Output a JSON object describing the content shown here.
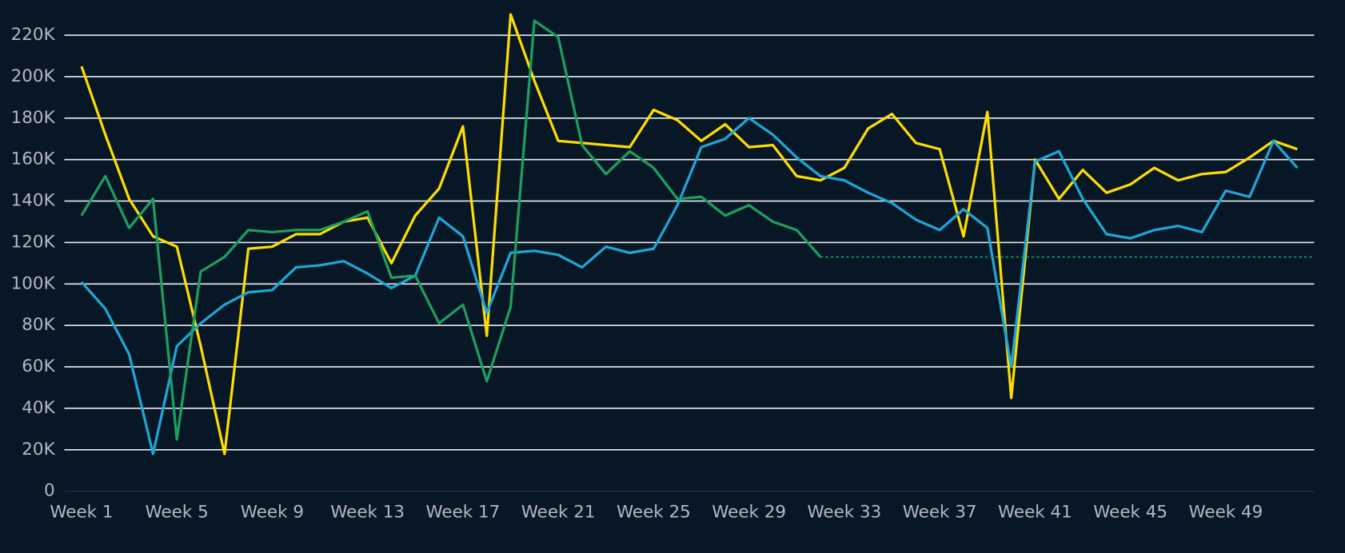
{
  "chart_data": {
    "type": "line",
    "categories": [
      "Week 1",
      null,
      null,
      null,
      "Week 5",
      null,
      null,
      null,
      "Week 9",
      null,
      null,
      null,
      "Week 13",
      null,
      null,
      null,
      "Week 17",
      null,
      null,
      null,
      "Week 21",
      null,
      null,
      null,
      "Week 25",
      null,
      null,
      null,
      "Week 29",
      null,
      null,
      null,
      "Week 33",
      null,
      null,
      null,
      "Week 37",
      null,
      null,
      null,
      "Week 41",
      null,
      null,
      null,
      "Week 45",
      null,
      null,
      null,
      "Week 49",
      null,
      null,
      null
    ],
    "series": [
      {
        "color": "#ffdd00",
        "values": [
          205000,
          172000,
          141000,
          123000,
          118000,
          70000,
          18000,
          117000,
          118000,
          124000,
          124000,
          130000,
          132000,
          110000,
          133000,
          146000,
          176000,
          75000,
          230000,
          198000,
          169000,
          168000,
          167000,
          166000,
          184000,
          179000,
          169000,
          177000,
          166000,
          167000,
          152000,
          150000,
          156000,
          175000,
          182000,
          168000,
          165000,
          123000,
          183000,
          45000,
          160000,
          141000,
          155000,
          144000,
          148000,
          156000,
          150000,
          153000,
          154000,
          161000,
          169000,
          165000
        ]
      },
      {
        "color": "#1fa6d6",
        "values": [
          101000,
          88000,
          66000,
          18000,
          70000,
          81000,
          90000,
          96000,
          97000,
          108000,
          109000,
          111000,
          105000,
          98000,
          104000,
          132000,
          123000,
          86000,
          115000,
          116000,
          114000,
          108000,
          118000,
          115000,
          117000,
          138000,
          166000,
          170000,
          180000,
          172000,
          161000,
          152000,
          150000,
          144000,
          139000,
          131000,
          126000,
          136000,
          127000,
          60000,
          159000,
          164000,
          141000,
          124000,
          122000,
          126000,
          128000,
          125000,
          145000,
          142000,
          169000,
          156000
        ]
      },
      {
        "color": "#1e9e60",
        "values": [
          133000,
          152000,
          127000,
          141000,
          25000,
          106000,
          113000,
          126000,
          125000,
          126000,
          126000,
          130000,
          135000,
          103000,
          104000,
          81000,
          90000,
          53000,
          89000,
          227000,
          219000,
          167000,
          153000,
          164000,
          156000,
          141000,
          142000,
          133000,
          138000,
          130000,
          126000,
          113000,
          null,
          null,
          null,
          null,
          null,
          null,
          null,
          null,
          null,
          null,
          null,
          null,
          null,
          null,
          null,
          null,
          null,
          null,
          null,
          null
        ]
      }
    ],
    "ylim": [
      0,
      220000
    ],
    "yticks": [
      0,
      {
        "value": 20000,
        "label": "20K"
      },
      {
        "value": 40000,
        "label": "40K"
      },
      {
        "value": 60000,
        "label": "60K"
      },
      {
        "value": 80000,
        "label": "80K"
      },
      {
        "value": 100000,
        "label": "100K"
      },
      {
        "value": 120000,
        "label": "120K"
      },
      {
        "value": 140000,
        "label": "140K"
      },
      {
        "value": 160000,
        "label": "160K"
      },
      {
        "value": 180000,
        "label": "180K"
      },
      {
        "value": 200000,
        "label": "200K"
      },
      {
        "value": 220000,
        "label": "220K"
      }
    ],
    "grid": true
  }
}
